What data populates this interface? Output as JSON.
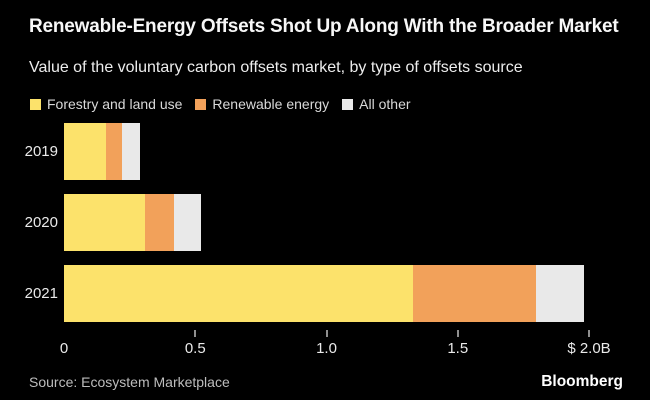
{
  "title": "Renewable-Energy Offsets Shot Up Along With the Broader Market",
  "subtitle": "Value of the voluntary carbon offsets market, by type of offsets source",
  "legend": [
    {
      "label": "Forestry and land use",
      "color": "#FCE26B"
    },
    {
      "label": "Renewable energy",
      "color": "#F2A15A"
    },
    {
      "label": "All other",
      "color": "#E9E9E9"
    }
  ],
  "chart_data": {
    "type": "bar",
    "orientation": "horizontal",
    "stacked": true,
    "unit": "$B",
    "categories": [
      "2019",
      "2020",
      "2021"
    ],
    "series": [
      {
        "name": "Forestry and land use",
        "color": "#FCE26B",
        "values": [
          0.16,
          0.31,
          1.33
        ]
      },
      {
        "name": "Renewable energy",
        "color": "#F2A15A",
        "values": [
          0.06,
          0.11,
          0.47
        ]
      },
      {
        "name": "All other",
        "color": "#E9E9E9",
        "values": [
          0.07,
          0.1,
          0.18
        ]
      }
    ],
    "xlim": [
      0,
      2.0
    ],
    "x_ticks": [
      {
        "value": 0,
        "label": "0",
        "show_mark": false
      },
      {
        "value": 0.5,
        "label": "0.5",
        "show_mark": true
      },
      {
        "value": 1.0,
        "label": "1.0",
        "show_mark": true
      },
      {
        "value": 1.5,
        "label": "1.5",
        "show_mark": true
      },
      {
        "value": 2.0,
        "label": "$ 2.0B",
        "show_mark": true
      }
    ],
    "grid": false,
    "legend_position": "top"
  },
  "footer": {
    "source": "Source: Ecosystem Marketplace",
    "brand": "Bloomberg"
  },
  "colors": {
    "background": "#000000",
    "title_text": "#F7F7F7",
    "subtitle_text": "#EDEDED",
    "legend_text": "#D9D9D9",
    "axis_text": "#EAEAEA",
    "tick_mark": "#8F8F8F",
    "source_text": "#BDBDBD",
    "brand_text": "#FFFFFF"
  }
}
